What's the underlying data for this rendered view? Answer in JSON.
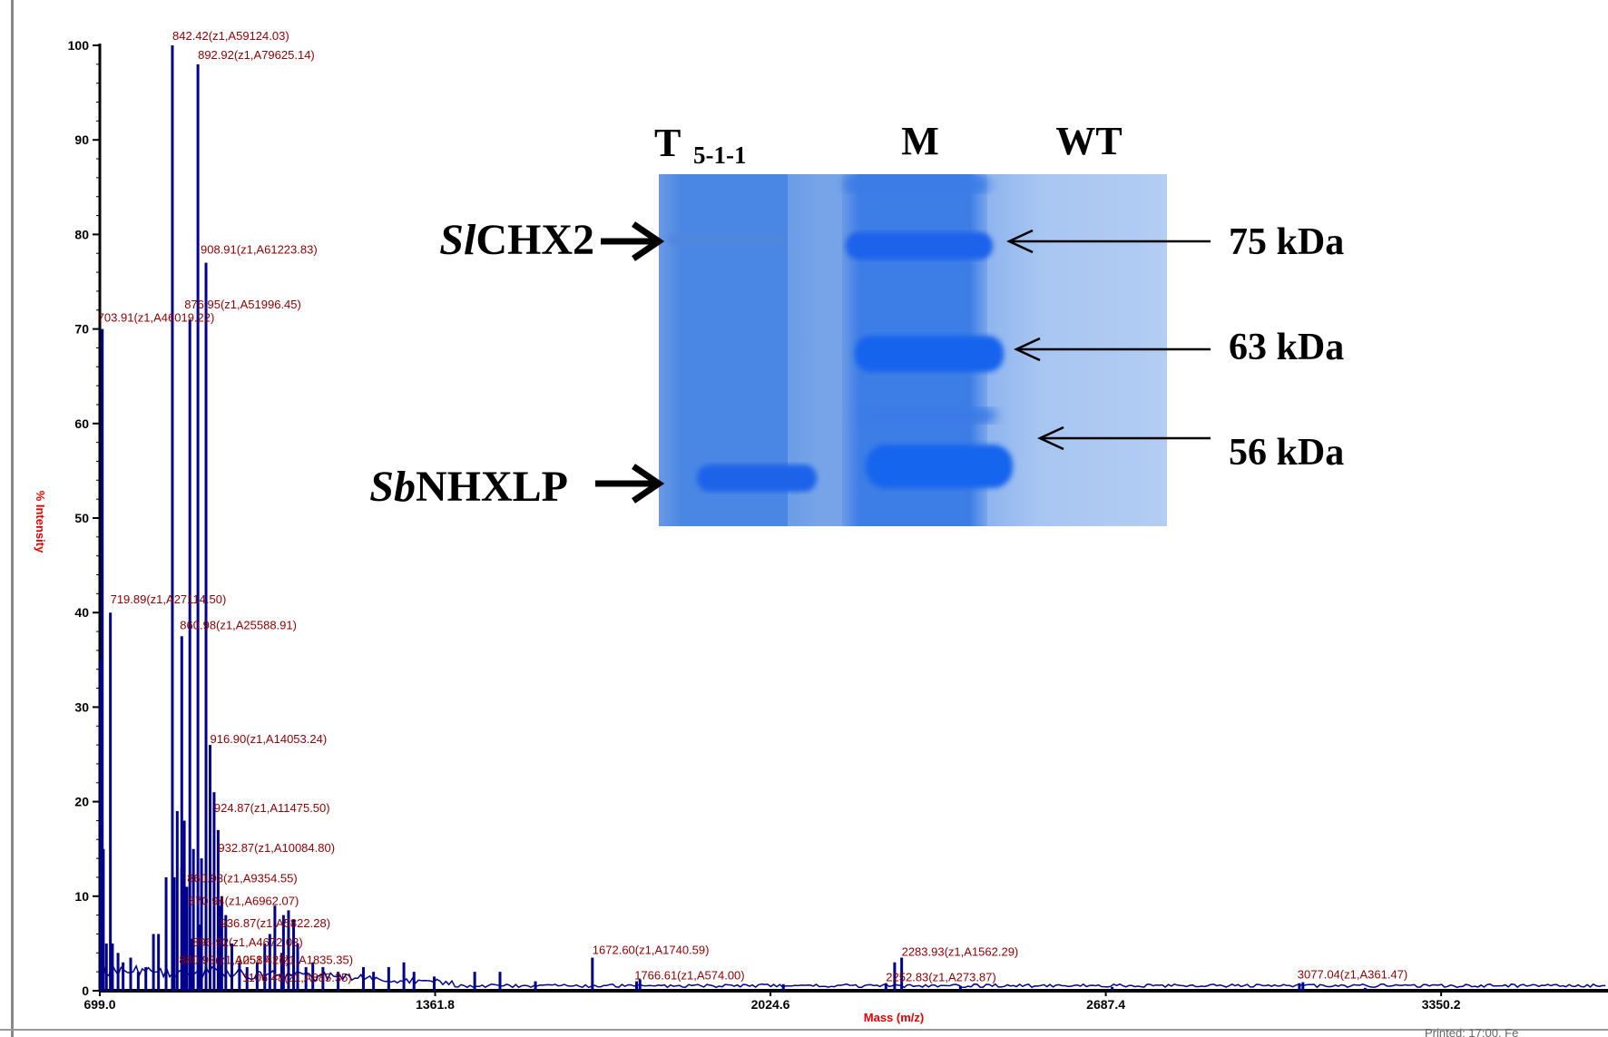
{
  "spectrum": {
    "ylabel": "% Intensity",
    "xlabel": "Mass (m/z)",
    "footer_text": "Printed: 17:00, Fe"
  },
  "chart_data": {
    "type": "line",
    "xlabel": "Mass (m/z)",
    "ylabel": "% Intensity",
    "xlim": [
      699.0,
      3680
    ],
    "ylim": [
      0,
      100
    ],
    "x_ticks": [
      699.0,
      1361.8,
      2024.6,
      2687.4,
      3350.2
    ],
    "x_tick_labels": [
      "699.0",
      "1361.8",
      "2024.6",
      "2687.4",
      "3350.2"
    ],
    "y_ticks": [
      0,
      10,
      20,
      30,
      40,
      50,
      60,
      70,
      80,
      90,
      100
    ],
    "series": [
      {
        "peaks": [
          {
            "x": 703.91,
            "y": 70.0,
            "label": "703.91(z1,A46019.22)"
          },
          {
            "x": 719.89,
            "y": 40.0,
            "label": "719.89(z1,A27114.50)"
          },
          {
            "x": 842.42,
            "y": 100.0,
            "label": "842.42(z1,A59124.03)"
          },
          {
            "x": 860.98,
            "y": 37.5,
            "label": "860.98(z1,A25588.91)"
          },
          {
            "x": 876.95,
            "y": 71.0,
            "label": "876.95(z1,A51996.45)"
          },
          {
            "x": 892.92,
            "y": 98.0,
            "label": "892.92(z1,A79625.14)"
          },
          {
            "x": 908.91,
            "y": 77.0,
            "label": "908.91(z1,A61223.83)"
          },
          {
            "x": 916.9,
            "y": 26.0,
            "label": "916.90(z1,A14053.24)"
          },
          {
            "x": 924.87,
            "y": 21.0,
            "label": "924.87(z1,A11475.50)"
          },
          {
            "x": 932.87,
            "y": 17.0,
            "label": "932.87(z1,A10084.80)"
          },
          {
            "x": 860.93,
            "y": 13.0,
            "label": "860.93(z1,A9354.55)"
          },
          {
            "x": 870.94,
            "y": 11.0,
            "label": "870.94(z1,A6962.07)"
          },
          {
            "x": 936.87,
            "y": 9.0,
            "label": "936.87(z1,A5822.28)"
          },
          {
            "x": 896.92,
            "y": 7.0,
            "label": "896.92(z1,A4672.03)"
          },
          {
            "x": 880.93,
            "y": 5.5,
            "label": "880.93(z1,A2517.27)"
          },
          {
            "x": 1058.41,
            "y": 4.0,
            "label": "1058.41(z1,A1835.35)"
          },
          {
            "x": 1106.48,
            "y": 2.5,
            "label": "1106.48(z1,A885.35)"
          },
          {
            "x": 1672.6,
            "y": 3.5,
            "label": "1672.60(z1,A1740.59)"
          },
          {
            "x": 1766.61,
            "y": 1.2,
            "label": "1766.61(z1,A574.00)"
          },
          {
            "x": 2283.93,
            "y": 3.5,
            "label": "2283.93(z1,A1562.29)"
          },
          {
            "x": 2252.83,
            "y": 0.8,
            "label": "2252.83(z1,A273.87)"
          },
          {
            "x": 3077.04,
            "y": 0.9,
            "label": "3077.04(z1,A361.47)"
          }
        ],
        "minor_peaks": [
          {
            "x": 701,
            "y": 35
          },
          {
            "x": 706,
            "y": 15
          },
          {
            "x": 712,
            "y": 5
          },
          {
            "x": 724,
            "y": 5
          },
          {
            "x": 735,
            "y": 4
          },
          {
            "x": 745,
            "y": 3
          },
          {
            "x": 760,
            "y": 3.5
          },
          {
            "x": 775,
            "y": 2
          },
          {
            "x": 790,
            "y": 2.5
          },
          {
            "x": 805,
            "y": 6
          },
          {
            "x": 815,
            "y": 6
          },
          {
            "x": 830,
            "y": 12
          },
          {
            "x": 846,
            "y": 12
          },
          {
            "x": 852,
            "y": 19
          },
          {
            "x": 866,
            "y": 18
          },
          {
            "x": 884,
            "y": 15
          },
          {
            "x": 900,
            "y": 14
          },
          {
            "x": 940,
            "y": 10
          },
          {
            "x": 948,
            "y": 8
          },
          {
            "x": 960,
            "y": 5
          },
          {
            "x": 975,
            "y": 3
          },
          {
            "x": 990,
            "y": 2.5
          },
          {
            "x": 1010,
            "y": 3
          },
          {
            "x": 1025,
            "y": 5
          },
          {
            "x": 1035,
            "y": 6
          },
          {
            "x": 1045,
            "y": 9
          },
          {
            "x": 1062,
            "y": 8
          },
          {
            "x": 1072,
            "y": 8.5
          },
          {
            "x": 1082,
            "y": 7.5
          },
          {
            "x": 1090,
            "y": 5
          },
          {
            "x": 1120,
            "y": 3
          },
          {
            "x": 1140,
            "y": 2.5
          },
          {
            "x": 1170,
            "y": 2
          },
          {
            "x": 1220,
            "y": 2.5
          },
          {
            "x": 1240,
            "y": 2
          },
          {
            "x": 1270,
            "y": 2.5
          },
          {
            "x": 1300,
            "y": 3
          },
          {
            "x": 1320,
            "y": 2
          },
          {
            "x": 1360,
            "y": 1.5
          },
          {
            "x": 1440,
            "y": 2
          },
          {
            "x": 1490,
            "y": 2
          },
          {
            "x": 1560,
            "y": 1
          },
          {
            "x": 1760,
            "y": 1
          },
          {
            "x": 2050,
            "y": 0.7
          },
          {
            "x": 2270,
            "y": 3
          },
          {
            "x": 2400,
            "y": 0.5
          },
          {
            "x": 2700,
            "y": 0.4
          },
          {
            "x": 3070,
            "y": 0.8
          },
          {
            "x": 3200,
            "y": 0.3
          }
        ]
      }
    ]
  },
  "gel": {
    "lane_labels": {
      "t_main": "T",
      "t_sub": "5-1-1",
      "m": "M",
      "wt": "WT"
    },
    "left_labels": {
      "slchx2_italic": "Sl",
      "slchx2_rest": "CHX2",
      "sbnhxlp_italic": "Sb",
      "sbnhxlp_rest": "NHXLP"
    },
    "markers": [
      "75 kDa",
      "63 kDa",
      "56 kDa"
    ],
    "colors": {
      "gel_bg": "#5b91e0",
      "band": "#1565ee",
      "wt_lane": "#a3c4f0"
    }
  }
}
